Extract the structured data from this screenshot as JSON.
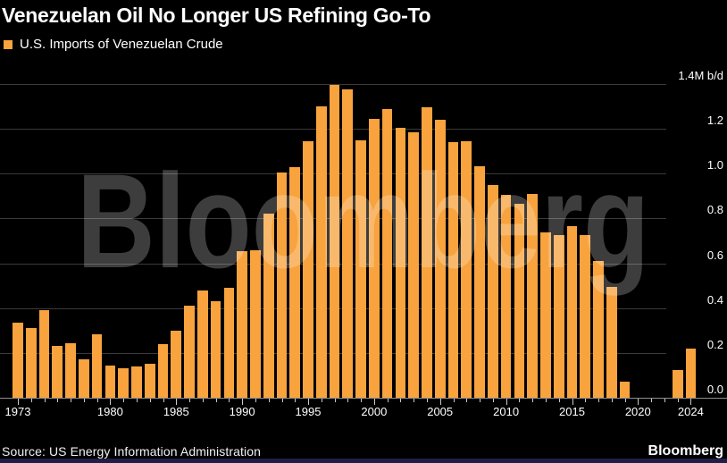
{
  "header": {
    "title": "Venezuelan Oil No Longer US Refining Go-To"
  },
  "legend": {
    "label": "U.S. Imports of Venezuelan Crude"
  },
  "watermark": "Bloomberg",
  "footer": {
    "source": "Source: US Energy Information Administration",
    "brand": "Bloomberg"
  },
  "colors": {
    "background": "#000000",
    "bar": "#F8A33E",
    "gridline": "#3A3A3A",
    "axis_line": "#8F8F8F",
    "text": "#FFFFFF",
    "footer_strip": "#1E1E46"
  },
  "chart_data": {
    "type": "bar",
    "title": "Venezuelan Oil No Longer US Refining Go-To",
    "series_name": "U.S. Imports of Venezuelan Crude",
    "unit": "M b/d",
    "ylabel": "",
    "xlabel": "",
    "grid": true,
    "legend_position": "top-left",
    "ylim": [
      0,
      1.4
    ],
    "x": [
      1973,
      1974,
      1975,
      1976,
      1977,
      1978,
      1979,
      1980,
      1981,
      1982,
      1983,
      1984,
      1985,
      1986,
      1987,
      1988,
      1989,
      1990,
      1991,
      1992,
      1993,
      1994,
      1995,
      1996,
      1997,
      1998,
      1999,
      2000,
      2001,
      2002,
      2003,
      2004,
      2005,
      2006,
      2007,
      2008,
      2009,
      2010,
      2011,
      2012,
      2013,
      2014,
      2015,
      2016,
      2017,
      2018,
      2019,
      2020,
      2021,
      2022,
      2023,
      2024
    ],
    "values": [
      0.335,
      0.31,
      0.39,
      0.23,
      0.245,
      0.17,
      0.285,
      0.145,
      0.13,
      0.14,
      0.15,
      0.24,
      0.3,
      0.41,
      0.48,
      0.43,
      0.49,
      0.655,
      0.66,
      0.82,
      1.005,
      1.03,
      1.145,
      1.3,
      1.395,
      1.375,
      1.15,
      1.245,
      1.29,
      1.205,
      1.185,
      1.295,
      1.24,
      1.14,
      1.145,
      1.035,
      0.95,
      0.905,
      0.865,
      0.91,
      0.74,
      0.725,
      0.765,
      0.725,
      0.61,
      0.495,
      0.07,
      0,
      0,
      0,
      0.125,
      0.22
    ],
    "y_ticks": [
      {
        "value": 0.0,
        "label": "0.0"
      },
      {
        "value": 0.2,
        "label": "0.2"
      },
      {
        "value": 0.4,
        "label": "0.4"
      },
      {
        "value": 0.6,
        "label": "0.6"
      },
      {
        "value": 0.8,
        "label": "0.8"
      },
      {
        "value": 1.0,
        "label": "1.0"
      },
      {
        "value": 1.2,
        "label": "1.2"
      },
      {
        "value": 1.4,
        "label": "1.4M b/d"
      }
    ],
    "x_tick_labels": [
      1973,
      1980,
      1985,
      1990,
      1995,
      2000,
      2005,
      2010,
      2015,
      2020,
      2024
    ]
  }
}
